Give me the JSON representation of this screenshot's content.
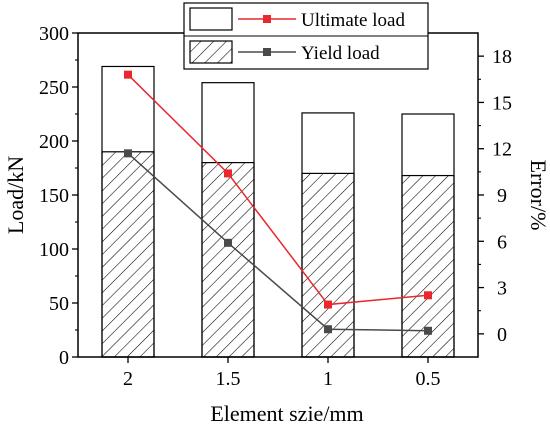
{
  "chart_data": {
    "type": "bar",
    "categories": [
      "2",
      "1.5",
      "1",
      "0.5"
    ],
    "xlabel": "Element szie/mm",
    "ylabel": "Load/kN",
    "y2label": "Error/%",
    "ylim": [
      0,
      300
    ],
    "y2lim": [
      -1.5,
      19.5
    ],
    "yticks": [
      0,
      50,
      100,
      150,
      200,
      250,
      300
    ],
    "y2ticks": [
      0,
      3,
      6,
      9,
      12,
      15,
      18
    ],
    "legend_position": "top",
    "bar_series": [
      {
        "name": "",
        "values": [
          269,
          254,
          226,
          225
        ],
        "fill": "white"
      },
      {
        "name": "",
        "values": [
          190,
          180,
          170,
          168
        ],
        "fill": "hatched"
      }
    ],
    "series": [
      {
        "name": "Ultimate load",
        "axis": "right",
        "values": [
          16.8,
          10.4,
          1.9,
          2.5
        ],
        "color": "#e8282c"
      },
      {
        "name": "Yield load",
        "axis": "right",
        "values": [
          11.7,
          5.9,
          0.3,
          0.2
        ],
        "color": "#4a4a4a"
      }
    ]
  }
}
